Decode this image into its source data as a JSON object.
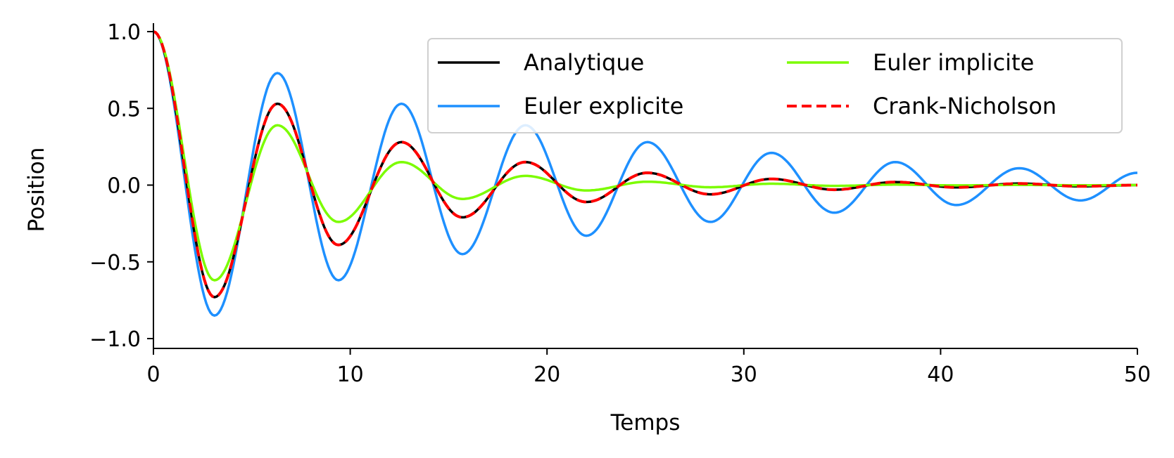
{
  "chart_data": {
    "type": "line",
    "title": "",
    "xlabel": "Temps",
    "ylabel": "Position",
    "xlim": [
      0,
      50
    ],
    "ylim": [
      -1.05,
      1.05
    ],
    "xticks": [
      0,
      10,
      20,
      30,
      40,
      50
    ],
    "yticks": [
      1.0,
      0.5,
      0.0,
      -0.5,
      -1.0
    ],
    "xtick_labels": [
      "0",
      "10",
      "20",
      "30",
      "40",
      "50"
    ],
    "ytick_labels": [
      "1.0",
      "0.5",
      "0.0",
      "−0.5",
      "−1.0"
    ],
    "grid": false,
    "legend_position": "upper-right",
    "legend_columns": 2,
    "series": [
      {
        "name": "Analytique",
        "color": "#000000",
        "style": "solid",
        "x": [
          0,
          3.1,
          6.3,
          9.4,
          12.6,
          15.7,
          18.9,
          22.0,
          25.1,
          28.3,
          31.4,
          34.6,
          37.7,
          40.8,
          44.0,
          47.1,
          50
        ],
        "y": [
          1.0,
          -0.73,
          0.53,
          -0.39,
          0.28,
          -0.21,
          0.15,
          -0.11,
          0.08,
          -0.06,
          0.04,
          -0.03,
          0.02,
          -0.015,
          0.01,
          -0.008,
          0.0
        ]
      },
      {
        "name": "Euler explicite",
        "color": "#1E90FF",
        "style": "solid",
        "x": [
          0,
          3.1,
          6.3,
          9.4,
          12.6,
          15.7,
          18.9,
          22.0,
          25.1,
          28.3,
          31.4,
          34.6,
          37.7,
          40.8,
          44.0,
          47.1,
          50
        ],
        "y": [
          1.0,
          -0.85,
          0.73,
          -0.62,
          0.53,
          -0.45,
          0.39,
          -0.33,
          0.28,
          -0.24,
          0.21,
          -0.18,
          0.15,
          -0.13,
          0.11,
          -0.1,
          0.08
        ]
      },
      {
        "name": "Euler implicite",
        "color": "#7CFC00",
        "style": "solid",
        "x": [
          0,
          3.1,
          6.3,
          9.4,
          12.6,
          15.7,
          18.9,
          22.0,
          25.1,
          28.3,
          31.4,
          34.6,
          37.7,
          40.8,
          44.0,
          47.1,
          50
        ],
        "y": [
          1.0,
          -0.62,
          0.39,
          -0.24,
          0.15,
          -0.09,
          0.06,
          -0.035,
          0.022,
          -0.014,
          0.009,
          -0.005,
          0.003,
          -0.002,
          0.001,
          -0.001,
          0.0
        ]
      },
      {
        "name": "Crank-Nicholson",
        "color": "#FF0000",
        "style": "dashed",
        "x": [
          0,
          3.1,
          6.3,
          9.4,
          12.6,
          15.7,
          18.9,
          22.0,
          25.1,
          28.3,
          31.4,
          34.6,
          37.7,
          40.8,
          44.0,
          47.1,
          50
        ],
        "y": [
          1.0,
          -0.73,
          0.53,
          -0.39,
          0.28,
          -0.21,
          0.15,
          -0.11,
          0.08,
          -0.06,
          0.04,
          -0.03,
          0.02,
          -0.015,
          0.01,
          -0.008,
          0.0
        ]
      }
    ]
  }
}
